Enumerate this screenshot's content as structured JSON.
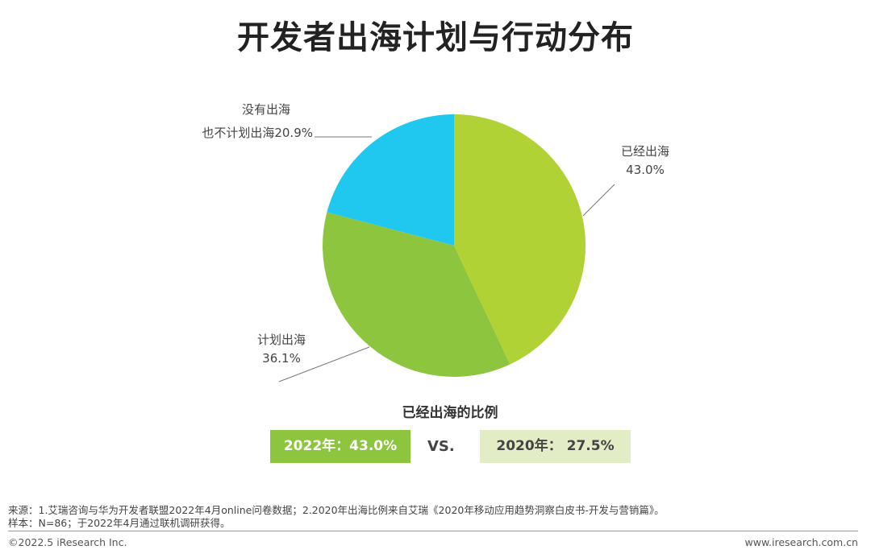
{
  "title": "开发者出海计划与行动分布",
  "chart_data": {
    "type": "pie",
    "slices": [
      {
        "label_line1": "已经出海",
        "label_line2": "43.0%",
        "value": 43.0,
        "color": "#B1D235"
      },
      {
        "label_line1": "计划出海",
        "label_line2": "36.1%",
        "value": 36.1,
        "color": "#8DC53F"
      },
      {
        "label_line1": "没有出海",
        "label_line2": "也不计划出海20.9%",
        "value": 20.9,
        "color": "#20C7EE"
      }
    ],
    "start": "12 o'clock",
    "direction": "clockwise"
  },
  "comparison": {
    "title": "已经出海的比例",
    "current": {
      "text": "2022年：43.0%",
      "bg": "#8DC53F",
      "fg": "#FFFFFF"
    },
    "vs": "VS.",
    "previous": {
      "text": "2020年： 27.5%",
      "bg": "#E3EDC5",
      "fg": "#444444"
    }
  },
  "footer": {
    "source": "来源：1.艾瑞咨询与华为开发者联盟2022年4月online问卷数据；2.2020年出海比例来自艾瑞《2020年移动应用趋势洞察白皮书-开发与营销篇》。",
    "sample": "样本：N=86；于2022年4月通过联机调研获得。",
    "copyright": "©2022.5 iResearch Inc.",
    "site": "www.iresearch.com.cn"
  }
}
